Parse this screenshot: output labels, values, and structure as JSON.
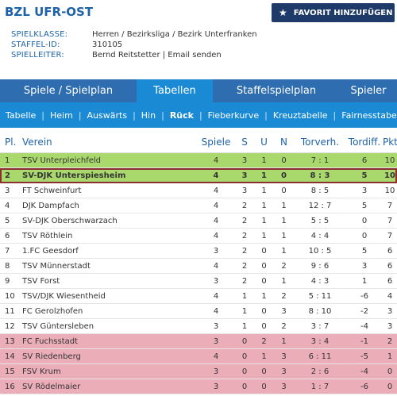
{
  "header": {
    "title": "BZL UFR-OST",
    "favorite_button": "FAVORIT HINZUFÜGEN",
    "meta": [
      {
        "label": "SPIELKLASSE:",
        "value": "Herren / Bezirksliga / Bezirk Unterfranken"
      },
      {
        "label": "STAFFEL-ID:",
        "value": "310105"
      },
      {
        "label": "SPIELLEITER:",
        "value": "Bernd Reitstetter | Email senden"
      }
    ]
  },
  "tabs": [
    {
      "label": "Spiele / Spielplan",
      "active": false
    },
    {
      "label": "Tabellen",
      "active": true
    },
    {
      "label": "Staffelspielplan",
      "active": false
    },
    {
      "label": "Spieler",
      "active": false
    }
  ],
  "subnav": [
    {
      "label": "Tabelle",
      "active": false
    },
    {
      "label": "Heim",
      "active": false
    },
    {
      "label": "Auswärts",
      "active": false
    },
    {
      "label": "Hin",
      "active": false
    },
    {
      "label": "Rück",
      "active": true
    },
    {
      "label": "Fieberkurve",
      "active": false
    },
    {
      "label": "Kreuztabelle",
      "active": false
    },
    {
      "label": "Fairnesstabelle",
      "active": false
    }
  ],
  "table": {
    "columns": [
      "Pl.",
      "Verein",
      "Spiele",
      "S",
      "U",
      "N",
      "Torverh.",
      "Tordiff.",
      "Pkt."
    ],
    "rows": [
      {
        "pl": "1",
        "team": "TSV Unterpleichfeld",
        "sp": "4",
        "s": "3",
        "u": "1",
        "n": "0",
        "tv": "7 : 1",
        "td": "6",
        "pk": "10",
        "zone": "green"
      },
      {
        "pl": "2",
        "team": "SV-DJK Unterspiesheim",
        "sp": "4",
        "s": "3",
        "u": "1",
        "n": "0",
        "tv": "8 : 3",
        "td": "5",
        "pk": "10",
        "zone": "green",
        "highlight": true
      },
      {
        "pl": "3",
        "team": "FT Schweinfurt",
        "sp": "4",
        "s": "3",
        "u": "1",
        "n": "0",
        "tv": "8 : 5",
        "td": "3",
        "pk": "10",
        "zone": ""
      },
      {
        "pl": "4",
        "team": "DJK Dampfach",
        "sp": "4",
        "s": "2",
        "u": "1",
        "n": "1",
        "tv": "12 : 7",
        "td": "5",
        "pk": "7",
        "zone": ""
      },
      {
        "pl": "5",
        "team": "SV-DJK Oberschwarzach",
        "sp": "4",
        "s": "2",
        "u": "1",
        "n": "1",
        "tv": "5 : 5",
        "td": "0",
        "pk": "7",
        "zone": ""
      },
      {
        "pl": "6",
        "team": "TSV Röthlein",
        "sp": "4",
        "s": "2",
        "u": "1",
        "n": "1",
        "tv": "4 : 4",
        "td": "0",
        "pk": "7",
        "zone": ""
      },
      {
        "pl": "7",
        "team": "1.FC Geesdorf",
        "sp": "3",
        "s": "2",
        "u": "0",
        "n": "1",
        "tv": "10 : 5",
        "td": "5",
        "pk": "6",
        "zone": ""
      },
      {
        "pl": "8",
        "team": "TSV Münnerstadt",
        "sp": "4",
        "s": "2",
        "u": "0",
        "n": "2",
        "tv": "9 : 6",
        "td": "3",
        "pk": "6",
        "zone": ""
      },
      {
        "pl": "9",
        "team": "TSV Forst",
        "sp": "3",
        "s": "2",
        "u": "0",
        "n": "1",
        "tv": "4 : 3",
        "td": "1",
        "pk": "6",
        "zone": ""
      },
      {
        "pl": "10",
        "team": "TSV/DJK Wiesentheid",
        "sp": "4",
        "s": "1",
        "u": "1",
        "n": "2",
        "tv": "5 : 11",
        "td": "-6",
        "pk": "4",
        "zone": ""
      },
      {
        "pl": "11",
        "team": "FC Gerolzhofen",
        "sp": "4",
        "s": "1",
        "u": "0",
        "n": "3",
        "tv": "8 : 10",
        "td": "-2",
        "pk": "3",
        "zone": ""
      },
      {
        "pl": "12",
        "team": "TSV Güntersleben",
        "sp": "3",
        "s": "1",
        "u": "0",
        "n": "2",
        "tv": "3 : 7",
        "td": "-4",
        "pk": "3",
        "zone": ""
      },
      {
        "pl": "13",
        "team": "FC Fuchsstadt",
        "sp": "3",
        "s": "0",
        "u": "2",
        "n": "1",
        "tv": "3 : 4",
        "td": "-1",
        "pk": "2",
        "zone": "red"
      },
      {
        "pl": "14",
        "team": "SV Riedenberg",
        "sp": "4",
        "s": "0",
        "u": "1",
        "n": "3",
        "tv": "6 : 11",
        "td": "-5",
        "pk": "1",
        "zone": "red"
      },
      {
        "pl": "15",
        "team": "FSV Krum",
        "sp": "3",
        "s": "0",
        "u": "0",
        "n": "3",
        "tv": "2 : 6",
        "td": "-4",
        "pk": "0",
        "zone": "red"
      },
      {
        "pl": "16",
        "team": "SV Rödelmaier",
        "sp": "3",
        "s": "0",
        "u": "0",
        "n": "3",
        "tv": "1 : 7",
        "td": "-6",
        "pk": "0",
        "zone": "red"
      }
    ]
  },
  "colors": {
    "accent_blue": "#1a8ad4",
    "dark_blue": "#2d6db0",
    "navy_button": "#1d3a68",
    "promotion_green": "#a9d96d",
    "relegation_red": "#ebadb8",
    "highlight_border": "#8b2e2e"
  },
  "icons": {
    "favorite": "star-icon"
  }
}
